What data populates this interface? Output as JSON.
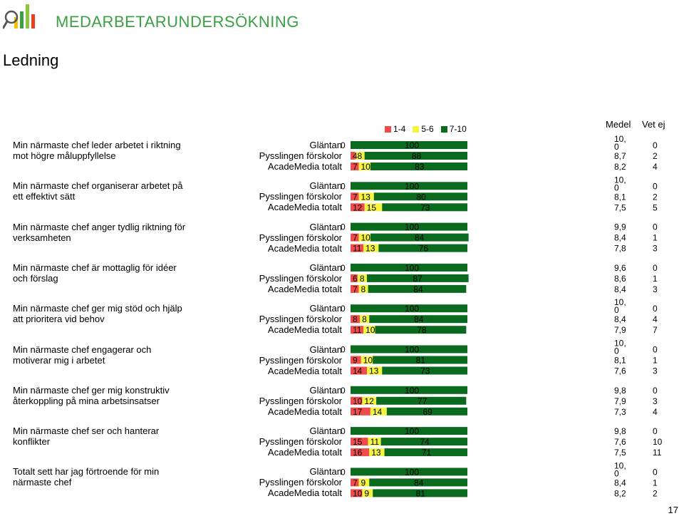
{
  "brand": "MEDARBETARUNDERSÖKNING",
  "title": "Ledning",
  "page_number": "17",
  "columns": {
    "mean": "Medel",
    "unknown": "Vet ej"
  },
  "colors": {
    "low": "#f04b4b",
    "mid": "#f5f540",
    "high": "#0a6b1f",
    "brand": "#3aa043"
  },
  "chart_data": {
    "type": "bar",
    "stacked": true,
    "legend": [
      "1-4",
      "5-6",
      "7-10"
    ],
    "legend_position": "top",
    "units": "%",
    "groups": [
      "Gläntan",
      "Pysslingen förskolor",
      "AcadeMedia totalt"
    ],
    "items": [
      {
        "question": "Min närmaste chef leder arbetet i riktning mot högre måluppfyllelse",
        "rows": [
          {
            "group": "Gläntan",
            "low": 0,
            "mid": 0,
            "high": 100,
            "low_label": "0",
            "mid_label": "",
            "mean": "10,\n0",
            "vet_ej": "0"
          },
          {
            "group": "Pysslingen förskolor",
            "low": 4,
            "mid": 8,
            "high": 88,
            "low_label": "4",
            "mid_label": "8",
            "mean": "8,7",
            "vet_ej": "2"
          },
          {
            "group": "AcadeMedia totalt",
            "low": 7,
            "mid": 10,
            "high": 83,
            "low_label": "7",
            "mid_label": "10",
            "mean": "8,2",
            "vet_ej": "4"
          }
        ]
      },
      {
        "question": "Min närmaste chef organiserar arbetet på ett effektivt sätt",
        "rows": [
          {
            "group": "Gläntan",
            "low": 0,
            "mid": 0,
            "high": 100,
            "low_label": "0",
            "mid_label": "",
            "mean": "10,\n0",
            "vet_ej": "0"
          },
          {
            "group": "Pysslingen förskolor",
            "low": 7,
            "mid": 13,
            "high": 80,
            "low_label": "7",
            "mid_label": "13",
            "mean": "8,1",
            "vet_ej": "2"
          },
          {
            "group": "AcadeMedia totalt",
            "low": 12,
            "mid": 15,
            "high": 73,
            "low_label": "12",
            "mid_label": "15",
            "mean": "7,5",
            "vet_ej": "5"
          }
        ]
      },
      {
        "question": "Min närmaste chef anger tydlig riktning för verksamheten",
        "rows": [
          {
            "group": "Gläntan",
            "low": 0,
            "mid": 0,
            "high": 100,
            "low_label": "0",
            "mid_label": "",
            "mean": "9,9",
            "vet_ej": "0"
          },
          {
            "group": "Pysslingen förskolor",
            "low": 7,
            "mid": 10,
            "high": 84,
            "low_label": "7",
            "mid_label": "10",
            "mean": "8,4",
            "vet_ej": "1"
          },
          {
            "group": "AcadeMedia totalt",
            "low": 11,
            "mid": 13,
            "high": 76,
            "low_label": "11",
            "mid_label": "13",
            "mean": "7,8",
            "vet_ej": "3"
          }
        ]
      },
      {
        "question": "Min närmaste chef är mottaglig för idéer och förslag",
        "rows": [
          {
            "group": "Gläntan",
            "low": 0,
            "mid": 0,
            "high": 100,
            "low_label": "0",
            "mid_label": "",
            "mean": "9,6",
            "vet_ej": "0"
          },
          {
            "group": "Pysslingen förskolor",
            "low": 6,
            "mid": 8,
            "high": 87,
            "low_label": "6",
            "mid_label": "8",
            "mean": "8,6",
            "vet_ej": "1"
          },
          {
            "group": "AcadeMedia totalt",
            "low": 7,
            "mid": 8,
            "high": 84,
            "low_label": "7",
            "mid_label": "8",
            "mean": "8,4",
            "vet_ej": "3"
          }
        ]
      },
      {
        "question": "Min närmaste chef ger mig stöd och hjälp att prioritera vid behov",
        "rows": [
          {
            "group": "Gläntan",
            "low": 0,
            "mid": 0,
            "high": 100,
            "low_label": "0",
            "mid_label": "",
            "mean": "10,\n0",
            "vet_ej": "0"
          },
          {
            "group": "Pysslingen förskolor",
            "low": 8,
            "mid": 8,
            "high": 84,
            "low_label": "8",
            "mid_label": "8",
            "mean": "8,4",
            "vet_ej": "4"
          },
          {
            "group": "AcadeMedia totalt",
            "low": 11,
            "mid": 10,
            "high": 78,
            "low_label": "11",
            "mid_label": "10",
            "mean": "7,9",
            "vet_ej": "7"
          }
        ]
      },
      {
        "question": "Min närmaste chef engagerar och motiverar mig i arbetet",
        "rows": [
          {
            "group": "Gläntan",
            "low": 0,
            "mid": 0,
            "high": 100,
            "low_label": "0",
            "mid_label": "",
            "mean": "10,\n0",
            "vet_ej": "0"
          },
          {
            "group": "Pysslingen förskolor",
            "low": 9,
            "mid": 10,
            "high": 81,
            "low_label": "9",
            "mid_label": "10",
            "mean": "8,1",
            "vet_ej": "1"
          },
          {
            "group": "AcadeMedia totalt",
            "low": 14,
            "mid": 13,
            "high": 73,
            "low_label": "14",
            "mid_label": "13",
            "mean": "7,6",
            "vet_ej": "3"
          }
        ]
      },
      {
        "question": "Min närmaste chef ger mig konstruktiv återkoppling på mina arbetsinsatser",
        "rows": [
          {
            "group": "Gläntan",
            "low": 0,
            "mid": 0,
            "high": 100,
            "low_label": "0",
            "mid_label": "",
            "mean": "9,8",
            "vet_ej": "0"
          },
          {
            "group": "Pysslingen förskolor",
            "low": 10,
            "mid": 12,
            "high": 77,
            "low_label": "10",
            "mid_label": "12",
            "mean": "7,9",
            "vet_ej": "3"
          },
          {
            "group": "AcadeMedia totalt",
            "low": 17,
            "mid": 14,
            "high": 69,
            "low_label": "17",
            "mid_label": "14",
            "mean": "7,3",
            "vet_ej": "4"
          }
        ]
      },
      {
        "question": "Min närmaste chef ser och hanterar konflikter",
        "rows": [
          {
            "group": "Gläntan",
            "low": 0,
            "mid": 0,
            "high": 100,
            "low_label": "0",
            "mid_label": "",
            "mean": "9,8",
            "vet_ej": "0"
          },
          {
            "group": "Pysslingen förskolor",
            "low": 15,
            "mid": 11,
            "high": 74,
            "low_label": "15",
            "mid_label": "11",
            "mean": "7,6",
            "vet_ej": "10"
          },
          {
            "group": "AcadeMedia totalt",
            "low": 16,
            "mid": 13,
            "high": 71,
            "low_label": "16",
            "mid_label": "13",
            "mean": "7,5",
            "vet_ej": "11"
          }
        ]
      },
      {
        "question": "Totalt sett har jag förtroende för min närmaste chef",
        "rows": [
          {
            "group": "Gläntan",
            "low": 0,
            "mid": 0,
            "high": 100,
            "low_label": "0",
            "mid_label": "",
            "mean": "10,\n0",
            "vet_ej": "0"
          },
          {
            "group": "Pysslingen förskolor",
            "low": 7,
            "mid": 9,
            "high": 84,
            "low_label": "7",
            "mid_label": "9",
            "mean": "8,4",
            "vet_ej": "1"
          },
          {
            "group": "AcadeMedia totalt",
            "low": 10,
            "mid": 9,
            "high": 81,
            "low_label": "10",
            "mid_label": "9",
            "mean": "8,2",
            "vet_ej": "2"
          }
        ]
      }
    ]
  }
}
